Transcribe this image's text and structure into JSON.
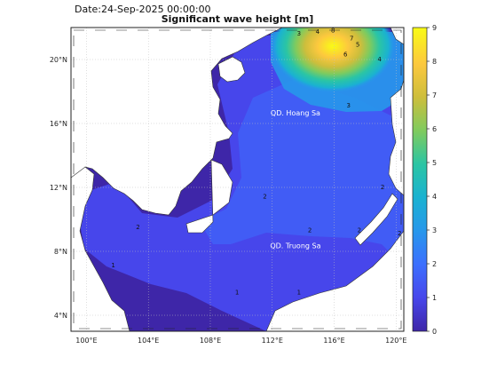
{
  "header": {
    "date_text": "Date:24-Sep-2025 00:00:00",
    "title": "Significant wave height [m]"
  },
  "map": {
    "lon_ticks": [
      "100°E",
      "104°E",
      "108°E",
      "112°E",
      "116°E",
      "120°E"
    ],
    "lat_ticks": [
      "4°N",
      "8°N",
      "12°N",
      "16°N",
      "20°N"
    ],
    "lon_range": [
      99,
      120.5
    ],
    "lat_range": [
      3,
      22
    ],
    "place_labels": [
      {
        "text": "QD. Hoang Sa",
        "lon": 113.5,
        "lat": 16.5
      },
      {
        "text": "QD. Truong Sa",
        "lon": 113.5,
        "lat": 8.2
      }
    ],
    "contour_labels": [
      {
        "text": "2",
        "lon": 103.2,
        "lat": 9.4
      },
      {
        "text": "1",
        "lon": 101.6,
        "lat": 7.0
      },
      {
        "text": "2",
        "lon": 111.4,
        "lat": 11.3
      },
      {
        "text": "2",
        "lon": 114.3,
        "lat": 9.2
      },
      {
        "text": "1",
        "lon": 109.6,
        "lat": 5.3
      },
      {
        "text": "1",
        "lon": 113.6,
        "lat": 5.3
      },
      {
        "text": "2",
        "lon": 117.5,
        "lat": 9.2
      },
      {
        "text": "3",
        "lon": 116.8,
        "lat": 17.0
      },
      {
        "text": "4",
        "lon": 118.8,
        "lat": 19.9
      },
      {
        "text": "5",
        "lon": 117.4,
        "lat": 20.8
      },
      {
        "text": "6",
        "lon": 116.6,
        "lat": 20.2
      },
      {
        "text": "7",
        "lon": 117.0,
        "lat": 21.2
      },
      {
        "text": "3",
        "lon": 113.6,
        "lat": 21.5
      },
      {
        "text": "4",
        "lon": 114.8,
        "lat": 21.6
      },
      {
        "text": "8",
        "lon": 115.8,
        "lat": 21.7
      },
      {
        "text": "2",
        "lon": 120.1,
        "lat": 9.0
      },
      {
        "text": "2",
        "lon": 119.0,
        "lat": 11.9
      }
    ]
  },
  "colorbar": {
    "min": 0,
    "max": 9,
    "tick_labels": [
      "0",
      "1",
      "2",
      "3",
      "4",
      "5",
      "6",
      "7",
      "8",
      "9"
    ],
    "colors": [
      "#3e26a8",
      "#4746eb",
      "#3c6ffe",
      "#2797eb",
      "#1ab2d1",
      "#2bc5a4",
      "#7fcb5e",
      "#cdbe3c",
      "#fcc83e",
      "#f9fb15"
    ]
  },
  "colors": {
    "land": "#ffffff",
    "coast": "#333333",
    "grid": "#bfbfbf"
  }
}
